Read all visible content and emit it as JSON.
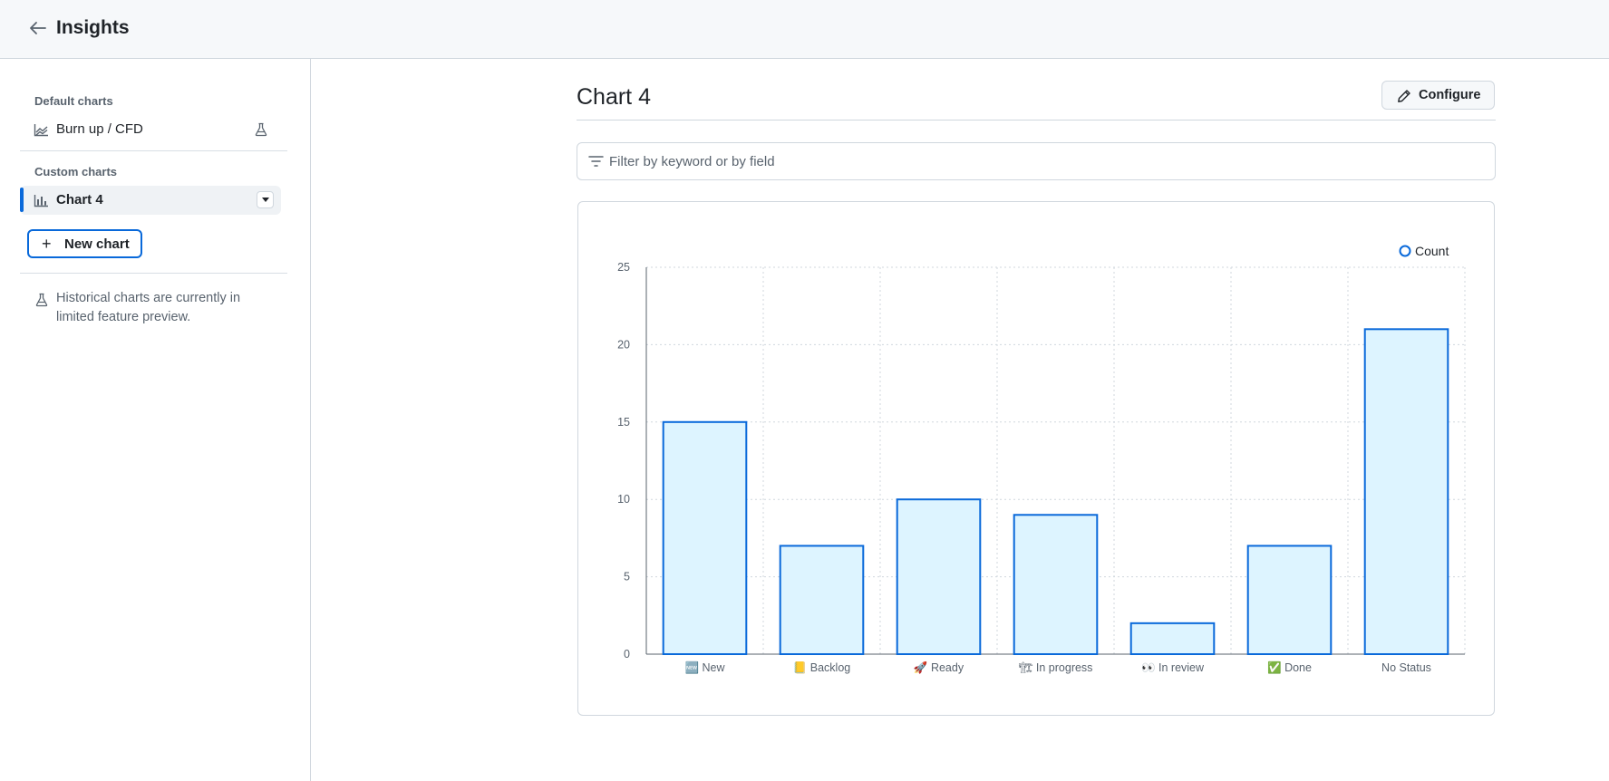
{
  "header": {
    "title": "Insights"
  },
  "sidebar": {
    "default_label": "Default charts",
    "default_items": [
      {
        "label": "Burn up / CFD"
      }
    ],
    "custom_label": "Custom charts",
    "custom_items": [
      {
        "label": "Chart 4",
        "selected": true
      }
    ],
    "new_chart_label": "New chart",
    "note": "Historical charts are currently in limited feature preview."
  },
  "main": {
    "chart_title": "Chart 4",
    "configure_label": "Configure",
    "filter_placeholder": "Filter by keyword or by field"
  },
  "colors": {
    "accent": "#0969da",
    "bar_fill": "#ddf4ff",
    "bar_stroke": "#0969da"
  },
  "chart_data": {
    "type": "bar",
    "categories": [
      "🆕 New",
      "📒 Backlog",
      "🚀 Ready",
      "🏗 In progress",
      "👀 In review",
      "✅ Done",
      "No Status"
    ],
    "series": [
      {
        "name": "Count",
        "values": [
          15,
          7,
          10,
          9,
          2,
          7,
          21
        ]
      }
    ],
    "ylim": [
      0,
      25
    ],
    "yticks": [
      0,
      5,
      10,
      15,
      20,
      25
    ],
    "grid": true,
    "legend": "top-right"
  }
}
